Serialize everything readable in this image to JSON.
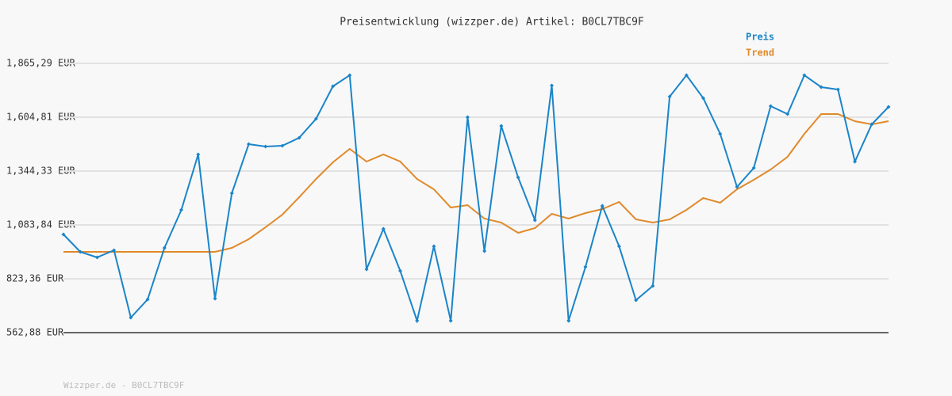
{
  "chart_data": {
    "type": "line",
    "title": "Preisentwicklung (wizzper.de) Artikel: B0CL7TBC9F",
    "footer": "Wizzper.de - B0CL7TBC9F",
    "categories": [
      null,
      null,
      null,
      null,
      null,
      null,
      null,
      null,
      null,
      null,
      null,
      null,
      null,
      null,
      null,
      null,
      null,
      null,
      null,
      null,
      null,
      null,
      null,
      null,
      null,
      null,
      null,
      null,
      null,
      null,
      null,
      null,
      null,
      null,
      null,
      null,
      null,
      null,
      null,
      null,
      null,
      null,
      null,
      null,
      null,
      null,
      null,
      null,
      null,
      null
    ],
    "series": [
      {
        "name": "Preis",
        "color": "#1a85c9",
        "markers": true,
        "values": [
          1037.9,
          953.6,
          926.8,
          961.3,
          635.7,
          723.8,
          972.8,
          1156.6,
          1424.8,
          727.6,
          1237.1,
          1474.6,
          1463.1,
          1466.9,
          1505.2,
          1597.2,
          1754.2,
          1807.8,
          869.3,
          1064.7,
          861.7,
          620.4,
          980.4,
          620.4,
          1604.8,
          957.5,
          1562.7,
          1313.7,
          1106.8,
          1758.0,
          620.4,
          880.8,
          1175.8,
          980.4,
          720.0,
          788.9,
          1704.4,
          1807.8,
          1696.8,
          1524.4,
          1267.7,
          1359.7,
          1658.5,
          1620.1,
          1807.8,
          1750.4,
          1738.9,
          1390.3,
          1570.3,
          1654.6
        ]
      },
      {
        "name": "Trend",
        "color": "#e08a2c",
        "markers": false,
        "values": [
          953.6,
          953.6,
          953.6,
          953.6,
          953.6,
          953.6,
          953.6,
          953.6,
          953.6,
          953.6,
          972.8,
          1014.9,
          1072.4,
          1133.7,
          1217.9,
          1306.0,
          1386.5,
          1451.6,
          1390.3,
          1424.8,
          1390.3,
          1306.0,
          1256.2,
          1168.1,
          1179.6,
          1114.5,
          1095.4,
          1045.6,
          1068.5,
          1137.5,
          1114.5,
          1141.3,
          1160.5,
          1195.0,
          1110.7,
          1095.4,
          1110.7,
          1156.6,
          1214.1,
          1191.1,
          1256.2,
          1302.2,
          1352.0,
          1413.3,
          1524.4,
          1620.1,
          1620.1,
          1585.7,
          1570.3,
          1585.7
        ]
      }
    ],
    "ylim": [
      562.88,
      1865.29
    ],
    "yticks": [
      {
        "value": 562.88,
        "label": "562,88 EUR"
      },
      {
        "value": 823.36,
        "label": "823,36 EUR"
      },
      {
        "value": 1083.84,
        "label": "1,083,84 EUR"
      },
      {
        "value": 1344.33,
        "label": "1,344,33 EUR"
      },
      {
        "value": 1604.81,
        "label": "1,604,81 EUR"
      },
      {
        "value": 1865.29,
        "label": "1,865,29 EUR"
      }
    ],
    "grid": true
  }
}
